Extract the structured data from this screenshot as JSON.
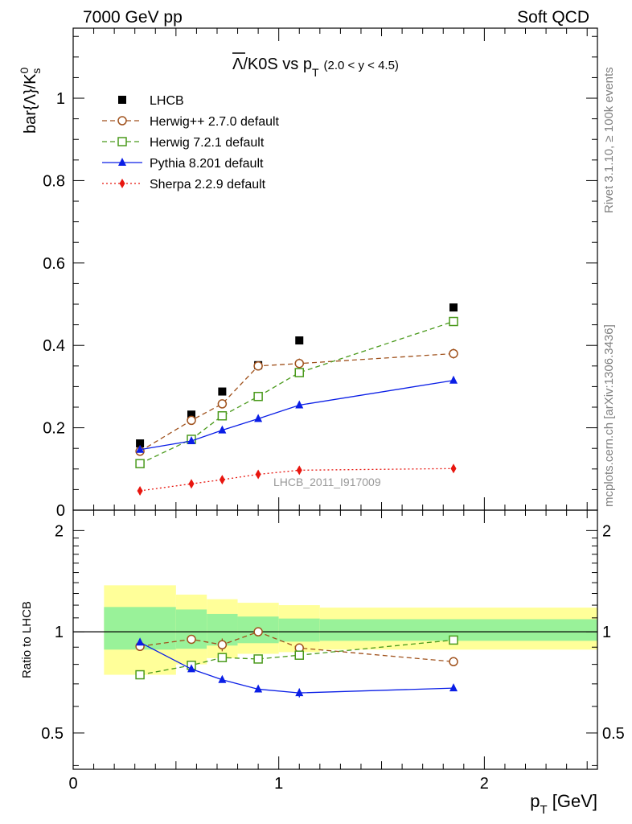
{
  "header": {
    "left": "7000 GeV pp",
    "right": "Soft QCD"
  },
  "side": {
    "rivet": "Rivet 3.1.10, ≥ 100k events",
    "mcplots": "mcplots.cern.ch [arXiv:1306.3436]"
  },
  "main_plot": {
    "title_symbol": "Λ",
    "title_rest": "/K0S vs p",
    "title_sub": "T",
    "title_range": "(2.0 < y < 4.5)",
    "ylabel_main": "bar{Λ}/K",
    "ylabel_sup": "0",
    "ylabel_sub": "s",
    "analysis_tag": "LHCB_2011_I917009"
  },
  "ratio_plot": {
    "ylabel": "Ratio to LHCB"
  },
  "x_axis": {
    "label_main": "p",
    "label_sub": "T",
    "label_unit": " [GeV]"
  },
  "chart_data": [
    {
      "type": "scatter",
      "panel": "main",
      "xlim": [
        0,
        2.55
      ],
      "ylim": [
        0,
        1.17
      ],
      "xticks": [
        0,
        1,
        2
      ],
      "yticks": [
        0,
        0.2,
        0.4,
        0.6,
        0.8,
        1
      ],
      "ytick_labels": [
        "0",
        "0.2",
        "0.4",
        "0.6",
        "0.8",
        "1"
      ],
      "legend_position": "top-left",
      "series": [
        {
          "name": "LHCB",
          "style": "data",
          "color": "#000000",
          "marker": "square-filled",
          "x": [
            0.325,
            0.575,
            0.725,
            0.9,
            1.1,
            1.85
          ],
          "y": [
            0.162,
            0.232,
            0.288,
            0.352,
            0.412,
            0.492
          ]
        },
        {
          "name": "Herwig++ 2.7.0 default",
          "style": "dashed",
          "color": "#a0521d",
          "marker": "circle-open",
          "x": [
            0.325,
            0.575,
            0.725,
            0.9,
            1.1,
            1.85
          ],
          "y": [
            0.143,
            0.218,
            0.258,
            0.35,
            0.356,
            0.38
          ],
          "yerr": [
            0.004,
            0.006,
            0.008,
            0.008,
            0.012,
            0.012
          ]
        },
        {
          "name": "Herwig 7.2.1 default",
          "style": "dashed",
          "color": "#4a9a1c",
          "marker": "square-open",
          "x": [
            0.325,
            0.575,
            0.725,
            0.9,
            1.1,
            1.85
          ],
          "y": [
            0.113,
            0.172,
            0.229,
            0.276,
            0.334,
            0.458
          ]
        },
        {
          "name": "Pythia 8.201 default",
          "style": "solid",
          "color": "#0a1ee6",
          "marker": "triangle-filled",
          "x": [
            0.325,
            0.575,
            0.725,
            0.9,
            1.1,
            1.85
          ],
          "y": [
            0.147,
            0.168,
            0.194,
            0.222,
            0.255,
            0.315
          ]
        },
        {
          "name": "Sherpa 2.2.9 default",
          "style": "dotted",
          "color": "#e8160f",
          "marker": "diamond-filled",
          "x": [
            0.325,
            0.575,
            0.725,
            0.9,
            1.1,
            1.85
          ],
          "y": [
            0.047,
            0.064,
            0.074,
            0.087,
            0.097,
            0.101
          ]
        }
      ]
    },
    {
      "type": "scatter",
      "panel": "ratio",
      "scale": "log",
      "xlim": [
        0,
        2.55
      ],
      "ylim": [
        0.39,
        2.3
      ],
      "xticks": [
        0,
        1,
        2
      ],
      "yticks": [
        0.5,
        1,
        2
      ],
      "ytick_labels": [
        "0.5",
        "1",
        "2"
      ],
      "reference_line": 1,
      "bands": [
        {
          "x0": 0.15,
          "x1": 0.5,
          "y_lo": 0.745,
          "y_hi": 1.375,
          "g_lo": 0.885,
          "g_hi": 1.185
        },
        {
          "x0": 0.5,
          "x1": 0.65,
          "y_lo": 0.8,
          "y_hi": 1.29,
          "g_lo": 0.89,
          "g_hi": 1.165
        },
        {
          "x0": 0.65,
          "x1": 0.8,
          "y_lo": 0.835,
          "y_hi": 1.25,
          "g_lo": 0.91,
          "g_hi": 1.13
        },
        {
          "x0": 0.8,
          "x1": 1.0,
          "y_lo": 0.86,
          "y_hi": 1.22,
          "g_lo": 0.925,
          "g_hi": 1.11
        },
        {
          "x0": 1.0,
          "x1": 1.2,
          "y_lo": 0.87,
          "y_hi": 1.2,
          "g_lo": 0.935,
          "g_hi": 1.095
        },
        {
          "x0": 1.2,
          "x1": 2.55,
          "y_lo": 0.885,
          "y_hi": 1.18,
          "g_lo": 0.94,
          "g_hi": 1.09
        }
      ],
      "series": [
        {
          "name": "Herwig++ 2.7.0 default",
          "style": "dashed",
          "color": "#a0521d",
          "marker": "circle-open",
          "x": [
            0.325,
            0.575,
            0.725,
            0.9,
            1.1,
            1.85
          ],
          "y": [
            0.905,
            0.95,
            0.915,
            1.0,
            0.895,
            0.815
          ],
          "yerr": [
            0.02,
            0.02,
            0.04,
            0.02,
            0.025,
            0.02
          ]
        },
        {
          "name": "Herwig 7.2.1 default",
          "style": "dashed",
          "color": "#4a9a1c",
          "marker": "square-open",
          "x": [
            0.325,
            0.575,
            0.725,
            0.9,
            1.1,
            1.85
          ],
          "y": [
            0.745,
            0.795,
            0.838,
            0.83,
            0.852,
            0.945
          ]
        },
        {
          "name": "Pythia 8.201 default",
          "style": "solid",
          "color": "#0a1ee6",
          "marker": "triangle-filled",
          "x": [
            0.325,
            0.575,
            0.725,
            0.9,
            1.1,
            1.85
          ],
          "y": [
            0.93,
            0.775,
            0.72,
            0.675,
            0.658,
            0.68
          ],
          "yerr": [
            0,
            0,
            0,
            0,
            0.02,
            0
          ]
        }
      ]
    }
  ]
}
